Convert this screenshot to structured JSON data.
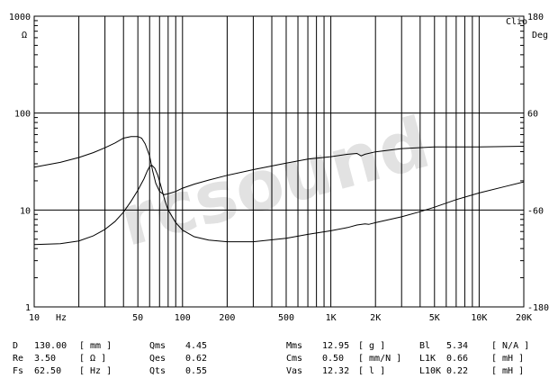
{
  "chart_data": {
    "type": "line",
    "brand": "Clio",
    "watermark": "rcsound",
    "x_axis": {
      "scale": "log",
      "range": [
        10,
        20000
      ],
      "unit": "Hz",
      "ticks": [
        {
          "value": 10,
          "label": "10"
        },
        {
          "value": 50,
          "label": "50"
        },
        {
          "value": 100,
          "label": "100"
        },
        {
          "value": 200,
          "label": "200"
        },
        {
          "value": 500,
          "label": "500"
        },
        {
          "value": 1000,
          "label": "1K"
        },
        {
          "value": 2000,
          "label": "2K"
        },
        {
          "value": 5000,
          "label": "5K"
        },
        {
          "value": 10000,
          "label": "10K"
        },
        {
          "value": 20000,
          "label": "20K"
        }
      ]
    },
    "y_left": {
      "scale": "log",
      "range": [
        1,
        1000
      ],
      "unit": "Ω",
      "ticks": [
        {
          "value": 1000,
          "label": "1000"
        },
        {
          "value": 100,
          "label": "100"
        },
        {
          "value": 10,
          "label": "10"
        },
        {
          "value": 1,
          "label": "1"
        }
      ]
    },
    "y_right": {
      "scale": "linear",
      "range": [
        -180,
        180
      ],
      "unit": "Deg",
      "ticks": [
        {
          "value": 180,
          "label": "180"
        },
        {
          "value": 60,
          "label": "60"
        },
        {
          "value": -60,
          "label": "-60"
        },
        {
          "value": -180,
          "label": "-180"
        }
      ]
    },
    "grid": true,
    "series": [
      {
        "axis": "left",
        "points": [
          [
            10,
            4.4
          ],
          [
            15,
            4.5
          ],
          [
            20,
            4.8
          ],
          [
            25,
            5.4
          ],
          [
            30,
            6.3
          ],
          [
            35,
            7.6
          ],
          [
            40,
            9.5
          ],
          [
            45,
            12.3
          ],
          [
            50,
            16
          ],
          [
            55,
            21
          ],
          [
            58,
            25.5
          ],
          [
            60,
            28
          ],
          [
            62,
            29
          ],
          [
            65,
            27
          ],
          [
            68,
            23
          ],
          [
            72,
            17
          ],
          [
            76,
            12.5
          ],
          [
            80,
            10
          ],
          [
            90,
            7.4
          ],
          [
            100,
            6.2
          ],
          [
            120,
            5.3
          ],
          [
            150,
            4.9
          ],
          [
            200,
            4.7
          ],
          [
            300,
            4.7
          ],
          [
            500,
            5.1
          ],
          [
            700,
            5.6
          ],
          [
            1000,
            6.1
          ],
          [
            1300,
            6.6
          ],
          [
            1500,
            7
          ],
          [
            1700,
            7.2
          ],
          [
            1800,
            7.1
          ],
          [
            2000,
            7.4
          ],
          [
            3000,
            8.5
          ],
          [
            4000,
            9.6
          ],
          [
            5000,
            10.7
          ],
          [
            7000,
            12.8
          ],
          [
            10000,
            15
          ],
          [
            15000,
            17.5
          ],
          [
            20000,
            19.5
          ]
        ]
      },
      {
        "axis": "right",
        "points": [
          [
            10,
            -7
          ],
          [
            15,
            -1
          ],
          [
            20,
            5
          ],
          [
            25,
            11
          ],
          [
            30,
            17
          ],
          [
            35,
            23
          ],
          [
            40,
            29
          ],
          [
            45,
            31
          ],
          [
            50,
            31
          ],
          [
            53,
            29
          ],
          [
            56,
            22
          ],
          [
            60,
            7
          ],
          [
            63,
            -12
          ],
          [
            66,
            -27
          ],
          [
            70,
            -37
          ],
          [
            75,
            -41
          ],
          [
            80,
            -40
          ],
          [
            90,
            -37
          ],
          [
            100,
            -33
          ],
          [
            120,
            -28
          ],
          [
            150,
            -23
          ],
          [
            200,
            -17
          ],
          [
            300,
            -10
          ],
          [
            500,
            -2
          ],
          [
            700,
            3
          ],
          [
            1000,
            6
          ],
          [
            1300,
            9
          ],
          [
            1500,
            10
          ],
          [
            1600,
            7
          ],
          [
            1700,
            9
          ],
          [
            2000,
            12
          ],
          [
            3000,
            16
          ],
          [
            5000,
            18
          ],
          [
            10000,
            18
          ],
          [
            20000,
            19
          ]
        ]
      }
    ],
    "parameters": [
      [
        {
          "name": "D",
          "value": "130.00",
          "unit": "[ mm ]"
        },
        {
          "name": "Qms",
          "value": "4.45",
          "unit": ""
        },
        {
          "name": "Mms",
          "value": "12.95",
          "unit": "[ g ]"
        },
        {
          "name": "Bl",
          "value": "5.34",
          "unit": "[ N/A ]"
        }
      ],
      [
        {
          "name": "Re",
          "value": "3.50",
          "unit": "[ Ω ]"
        },
        {
          "name": "Qes",
          "value": "0.62",
          "unit": ""
        },
        {
          "name": "Cms",
          "value": "0.50",
          "unit": "[ mm/N ]"
        },
        {
          "name": "L1K",
          "value": "0.66",
          "unit": "[ mH ]"
        }
      ],
      [
        {
          "name": "Fs",
          "value": "62.50",
          "unit": "[ Hz ]"
        },
        {
          "name": "Qts",
          "value": "0.55",
          "unit": ""
        },
        {
          "name": "Vas",
          "value": "12.32",
          "unit": "[ l ]"
        },
        {
          "name": "L10K",
          "value": "0.22",
          "unit": "[ mH ]"
        }
      ]
    ]
  }
}
